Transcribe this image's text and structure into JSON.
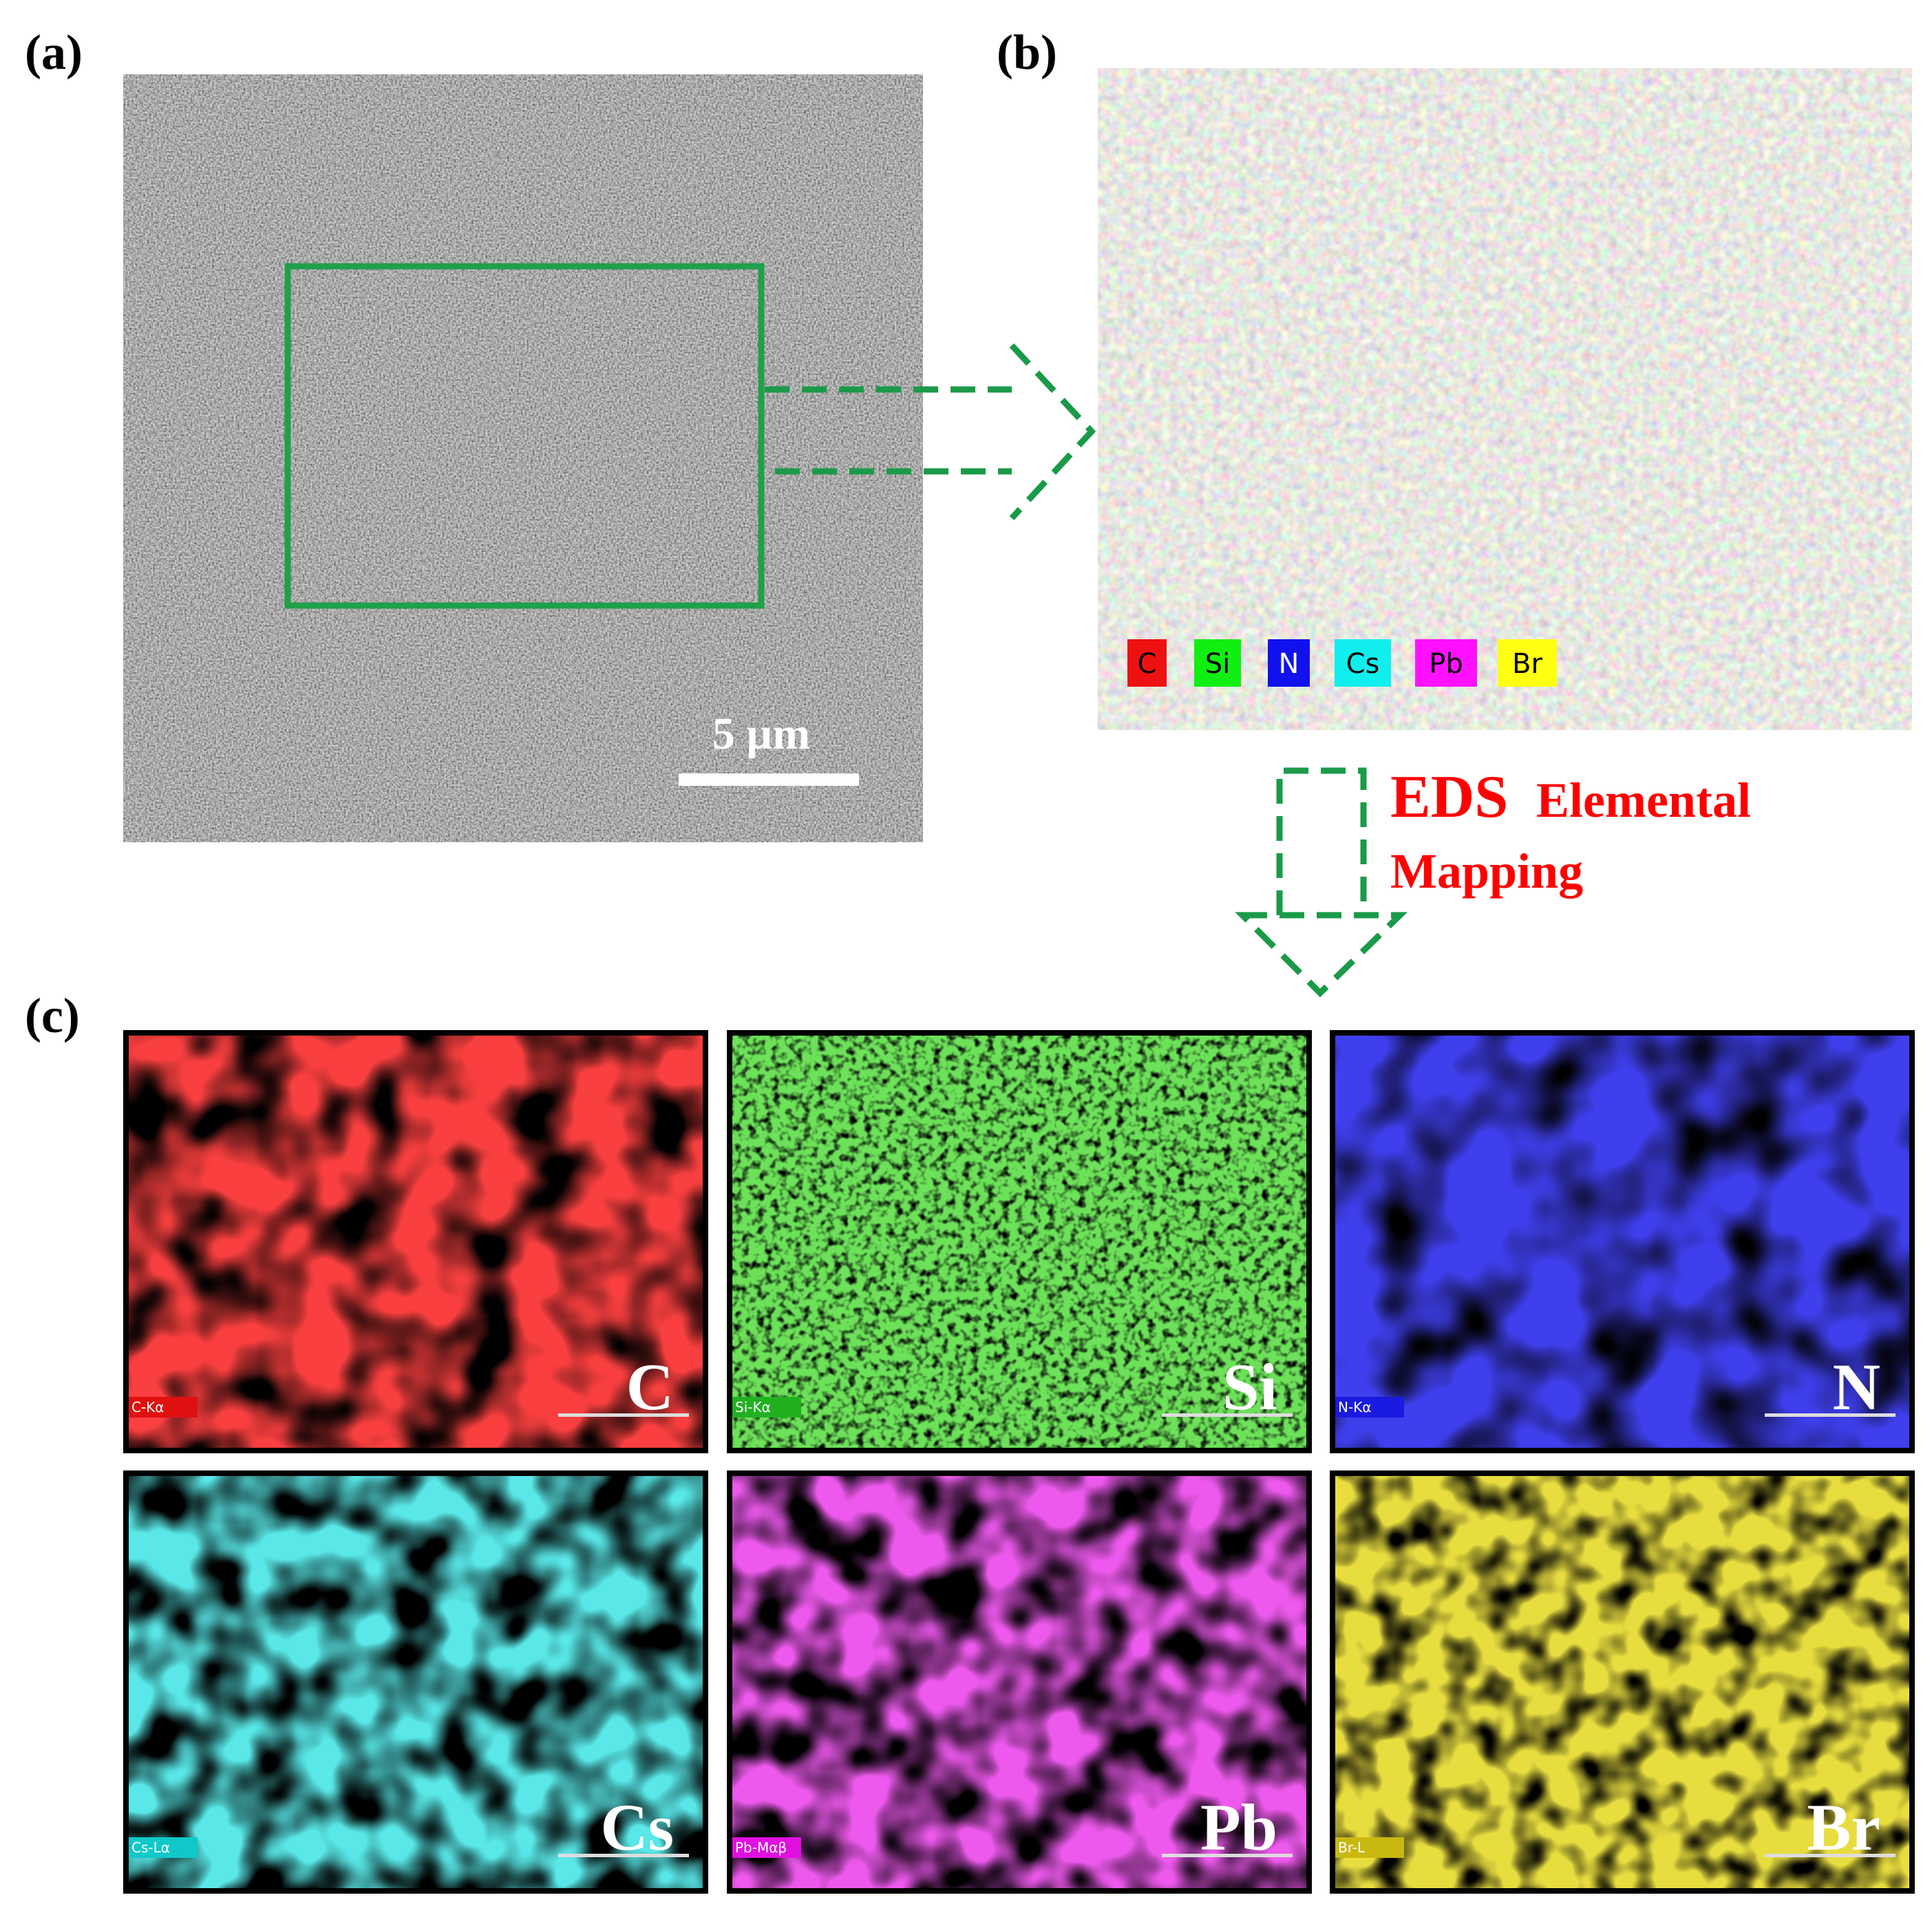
{
  "panels": {
    "a": "(a)",
    "b": "(b)",
    "c": "(c)"
  },
  "sem": {
    "scale_bar": "5 µm"
  },
  "legend": [
    "C",
    "Si",
    "N",
    "Cs",
    "Pb",
    "Br"
  ],
  "annotation": {
    "eds": "EDS",
    "elemental": "Elemental",
    "mapping": "Mapping"
  },
  "maps": [
    {
      "element": "C",
      "tag": "C-Kα"
    },
    {
      "element": "Si",
      "tag": "Si-Kα"
    },
    {
      "element": "N",
      "tag": "N-Kα"
    },
    {
      "element": "Cs",
      "tag": "Cs-Lα"
    },
    {
      "element": "Pb",
      "tag": "Pb-Mαβ"
    },
    {
      "element": "Br",
      "tag": "Br-L"
    }
  ]
}
